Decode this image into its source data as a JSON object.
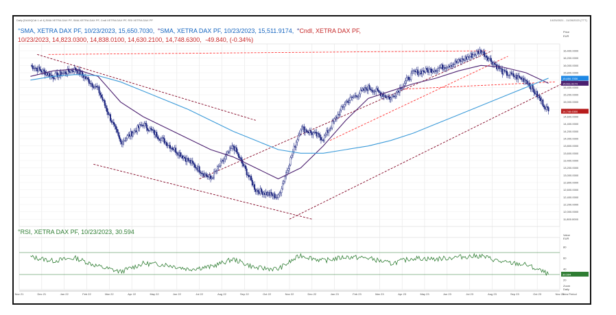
{
  "header": {
    "topline_left": "Daily [DAXK]Cdt 1 of 4] SMA XETRA DAX PF, SMA XETRA DAX PF, Cndl XETRA DAX PF, RSI XETRA DAX PF",
    "topline_right": "10/25/2021 - 11/28/2023 (TTT)"
  },
  "legend": {
    "line1_a": "SMA, XETRA DAX PF, 10/23/2023, 15,650.7030,",
    "line1_b": "SMA, XETRA DAX PF, 10/23/2023, 15,511.9174,",
    "line1_c": "Cndl, XETRA DAX PF,",
    "line2_a": "10/23/2023, 14,823.0300, 14,838.0100, 14,630.2100, 14,748.6300,",
    "line2_b": "-49.840, (-0.34%)",
    "rsi": "RSI, XETRA DAX PF, 10/23/2023, 30.594"
  },
  "price_axis": {
    "title": "Price",
    "unit": "EUR",
    "ticks": [
      "16,400.0000",
      "16,200.0000",
      "16,000.0000",
      "15,800.0000",
      "15,600.0000",
      "15,400.0000",
      "15,200.0000",
      "15,000.0000",
      "14,800.0000",
      "14,600.0000",
      "14,400.0000",
      "14,200.0000",
      "14,000.0000",
      "13,800.0000",
      "13,600.0000",
      "13,400.0000",
      "13,200.0000",
      "13,000.0000",
      "12,800.0000",
      "12,600.0000",
      "12,400.0000",
      "12,200.0000",
      "12,000.0000",
      "11,800.0000"
    ],
    "tick_values": [
      16400,
      16200,
      16000,
      15800,
      15600,
      15400,
      15200,
      15000,
      14800,
      14600,
      14400,
      14200,
      14000,
      13800,
      13600,
      13400,
      13200,
      13000,
      12800,
      12600,
      12400,
      12200,
      12000,
      11800
    ],
    "range": [
      11750,
      16550
    ],
    "label_sma1": "15,650.7030",
    "label_sma2": "15,511.9174",
    "label_close": "14,748.6300"
  },
  "rsi_axis": {
    "title": "Value",
    "unit": "EUR",
    "ticks": [
      "80",
      "60",
      "40",
      "20"
    ],
    "tick_values": [
      80,
      60,
      40,
      20
    ],
    "range": [
      10,
      90
    ],
    "upper": 70,
    "lower": 30,
    "label_value": "30.594",
    "footer": "Zoom",
    "footer2": "Daily"
  },
  "x_axis": {
    "months": [
      "Nov 21",
      "Dec 21",
      "Jan 22",
      "Feb 22",
      "Mar 22",
      "Apr 22",
      "May 22",
      "Jun 22",
      "Jul 22",
      "Aug 22",
      "Sep 22",
      "Oct 22",
      "Nov 22",
      "Dec 22",
      "Jan 23",
      "Feb 23",
      "Mar 23",
      "Apr 23",
      "May 23",
      "Jun 23",
      "Jul 23",
      "Aug 23",
      "Sep 23",
      "Oct 23",
      "Nov 23"
    ],
    "right_label": "Intra Period"
  },
  "colors": {
    "sma_long": "#3a9ad9",
    "sma_short": "#4b1f6f",
    "candle": "#1a237e",
    "trend_red": "#ff3030",
    "trend_dark": "#800020",
    "rsi": "#2e7d32",
    "rsi_band": "#2e7d32",
    "label_sma1_bg": "#1e88e5",
    "label_sma2_bg": "#4b1f6f",
    "label_close_bg": "#b71c1c",
    "label_rsi_bg": "#2e7d32",
    "legend_blue": "#1565c0",
    "legend_red": "#c62828",
    "legend_green": "#2e7d32"
  },
  "chart_data": {
    "type": "line",
    "title": "",
    "xlabel": "",
    "ylabel": "Price EUR",
    "x": [
      "2021-11",
      "2021-12",
      "2022-01",
      "2022-02",
      "2022-03",
      "2022-04",
      "2022-05",
      "2022-06",
      "2022-07",
      "2022-08",
      "2022-09",
      "2022-10",
      "2022-11",
      "2022-12",
      "2023-01",
      "2023-02",
      "2023-03",
      "2023-04",
      "2023-05",
      "2023-06",
      "2023-07",
      "2023-08",
      "2023-09",
      "2023-10"
    ],
    "ylim": [
      11800,
      16400
    ],
    "series": [
      {
        "name": "Cndl, XETRA DAX PF",
        "values": [
          16000,
          15700,
          15900,
          15350,
          13900,
          14400,
          13900,
          13400,
          12900,
          13800,
          12600,
          12400,
          14300,
          14000,
          15000,
          15400,
          15100,
          15800,
          15900,
          16100,
          16400,
          15800,
          15600,
          14750
        ]
      },
      {
        "name": "SMA, XETRA DAX PF",
        "values": [
          15700,
          15850,
          15900,
          15700,
          15000,
          14600,
          14300,
          14000,
          13700,
          13500,
          13200,
          12900,
          13200,
          13800,
          14500,
          15100,
          15300,
          15500,
          15650,
          15850,
          16000,
          15950,
          15800,
          15512
        ]
      },
      {
        "name": "SMA, XETRA DAX PF",
        "values": [
          15600,
          15700,
          15750,
          15720,
          15550,
          15300,
          15050,
          14800,
          14500,
          14200,
          13950,
          13700,
          13600,
          13600,
          13700,
          13800,
          13950,
          14150,
          14400,
          14650,
          14900,
          15150,
          15400,
          15651
        ]
      }
    ],
    "rsi": {
      "name": "RSI, XETRA DAX PF",
      "values": [
        62,
        55,
        60,
        45,
        35,
        50,
        48,
        40,
        44,
        58,
        42,
        40,
        65,
        55,
        62,
        60,
        50,
        60,
        58,
        62,
        64,
        52,
        48,
        30.6
      ],
      "bands": [
        70,
        30
      ]
    },
    "grid": true,
    "legend": "top-left"
  }
}
